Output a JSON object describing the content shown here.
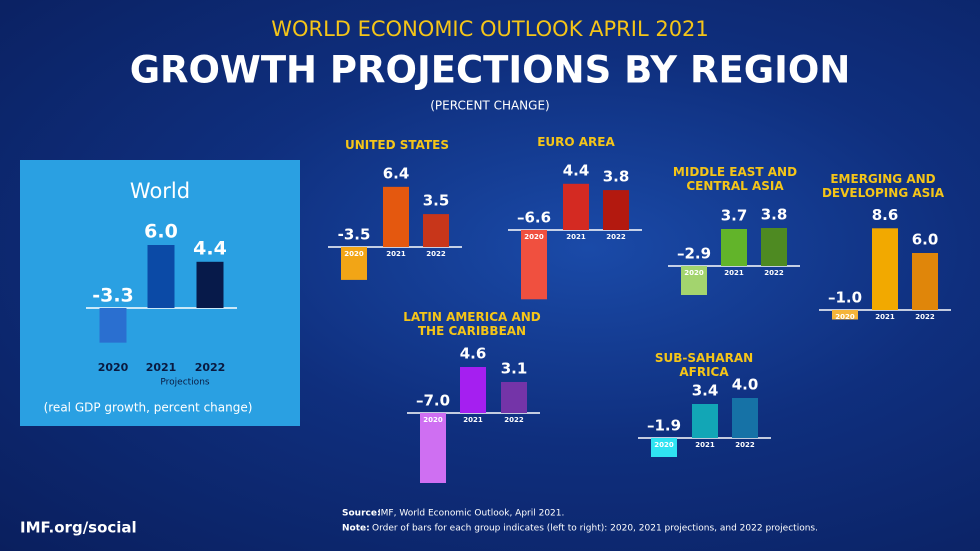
{
  "header": {
    "kicker": "WORLD ECONOMIC OUTLOOK APRIL 2021",
    "title": "GROWTH PROJECTIONS BY REGION",
    "subtitle": "(PERCENT CHANGE)"
  },
  "chart_data": [
    {
      "type": "bar",
      "title": "World",
      "categories": [
        "2020",
        "2021",
        "2022"
      ],
      "values": [
        -3.3,
        6.0,
        4.4
      ],
      "value_labels": [
        "-3.3",
        "6.0",
        "4.4"
      ],
      "colors": [
        "#2a6fd0",
        "#0b4aa6",
        "#071a4a"
      ],
      "annotation": "Projections",
      "note": "(real GDP growth, percent change)"
    },
    {
      "type": "bar",
      "title": "UNITED STATES",
      "categories": [
        "2020",
        "2021",
        "2022"
      ],
      "values": [
        -3.5,
        6.4,
        3.5
      ],
      "value_labels": [
        "-3.5",
        "6.4",
        "3.5"
      ],
      "colors": [
        "#f2a516",
        "#e4580f",
        "#c8361a"
      ]
    },
    {
      "type": "bar",
      "title": "EURO AREA",
      "categories": [
        "2020",
        "2021",
        "2022"
      ],
      "values": [
        -6.6,
        4.4,
        3.8
      ],
      "value_labels": [
        "–6.6",
        "4.4",
        "3.8"
      ],
      "colors": [
        "#f0503f",
        "#d42a22",
        "#b3190f"
      ]
    },
    {
      "type": "bar",
      "title": "MIDDLE EAST AND CENTRAL ASIA",
      "categories": [
        "2020",
        "2021",
        "2022"
      ],
      "values": [
        -2.9,
        3.7,
        3.8
      ],
      "value_labels": [
        "–2.9",
        "3.7",
        "3.8"
      ],
      "colors": [
        "#a3d46e",
        "#62b42a",
        "#4e8a22"
      ]
    },
    {
      "type": "bar",
      "title": "EMERGING AND DEVELOPING ASIA",
      "categories": [
        "2020",
        "2021",
        "2022"
      ],
      "values": [
        -1.0,
        8.6,
        6.0
      ],
      "value_labels": [
        "–1.0",
        "8.6",
        "6.0"
      ],
      "colors": [
        "#f5b43a",
        "#f2a900",
        "#e0860a"
      ]
    },
    {
      "type": "bar",
      "title": "LATIN AMERICA AND THE CARIBBEAN",
      "categories": [
        "2020",
        "2021",
        "2022"
      ],
      "values": [
        -7.0,
        4.6,
        3.1
      ],
      "value_labels": [
        "–7.0",
        "4.6",
        "3.1"
      ],
      "colors": [
        "#cf6ff2",
        "#a51ff0",
        "#7434a8"
      ]
    },
    {
      "type": "bar",
      "title": "SUB-SAHARAN AFRICA",
      "categories": [
        "2020",
        "2021",
        "2022"
      ],
      "values": [
        -1.9,
        3.4,
        4.0
      ],
      "value_labels": [
        "–1.9",
        "3.4",
        "4.0"
      ],
      "colors": [
        "#2fe3f2",
        "#12a6b6",
        "#1672a6"
      ]
    }
  ],
  "footer": {
    "brand": "IMF.org/social",
    "source_label": "Source:",
    "source": "IMF, World Economic Outlook, April 2021.",
    "note_label": "Note:",
    "note": "Order of bars for each group indicates (left to right): 2020, 2021 projections, and 2022 projections."
  }
}
